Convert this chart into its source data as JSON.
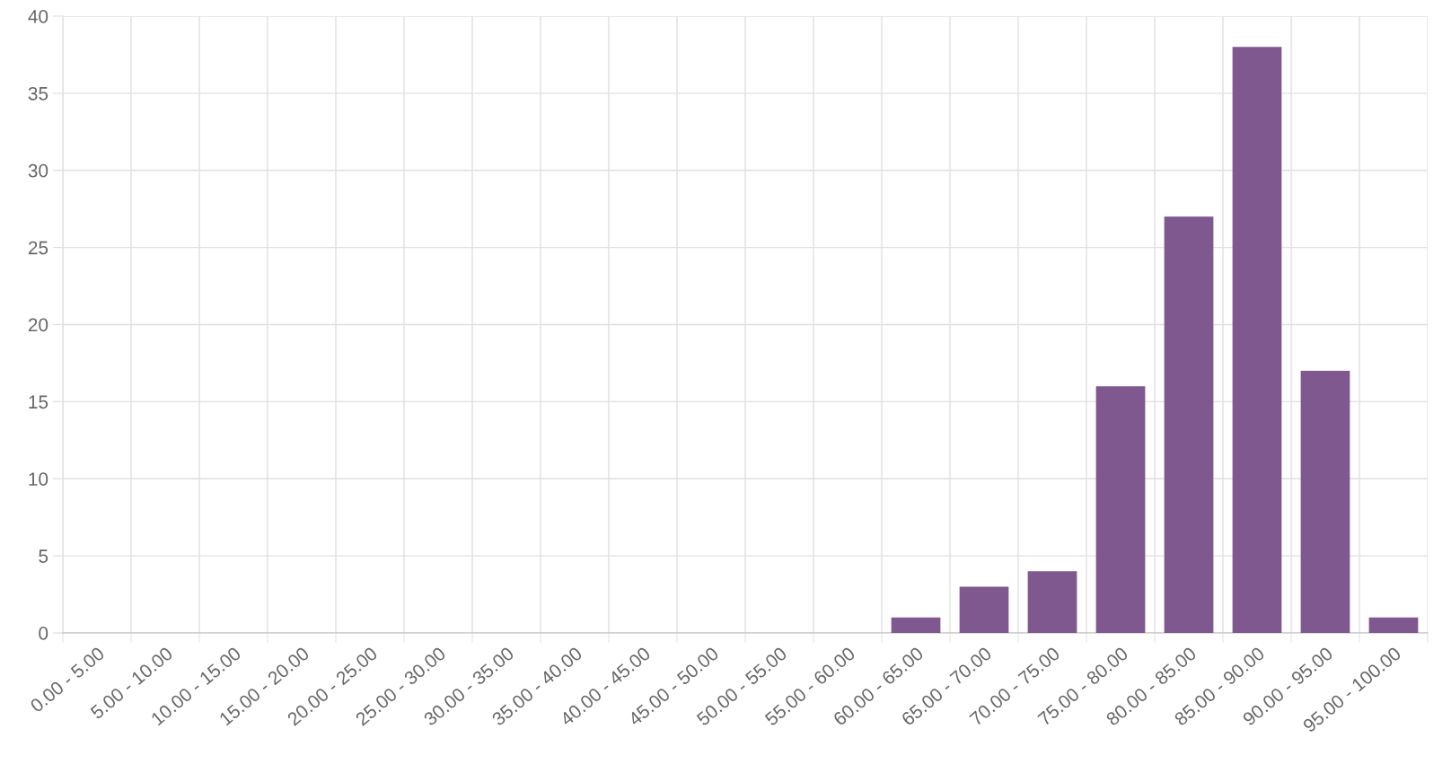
{
  "chart_data": {
    "type": "bar",
    "categories": [
      "0.00 - 5.00",
      "5.00 - 10.00",
      "10.00 - 15.00",
      "15.00 - 20.00",
      "20.00 - 25.00",
      "25.00 - 30.00",
      "30.00 - 35.00",
      "35.00 - 40.00",
      "40.00 - 45.00",
      "45.00 - 50.00",
      "50.00 - 55.00",
      "55.00 - 60.00",
      "60.00 - 65.00",
      "65.00 - 70.00",
      "70.00 - 75.00",
      "75.00 - 80.00",
      "80.00 - 85.00",
      "85.00 - 90.00",
      "90.00 - 95.00",
      "95.00 - 100.00"
    ],
    "values": [
      0,
      0,
      0,
      0,
      0,
      0,
      0,
      0,
      0,
      0,
      0,
      0,
      1,
      3,
      4,
      16,
      27,
      38,
      17,
      1
    ],
    "color": "#7f588f",
    "ylim": [
      0,
      40
    ],
    "yticks": [
      0,
      5,
      10,
      15,
      20,
      25,
      30,
      35,
      40
    ],
    "grid": true
  }
}
